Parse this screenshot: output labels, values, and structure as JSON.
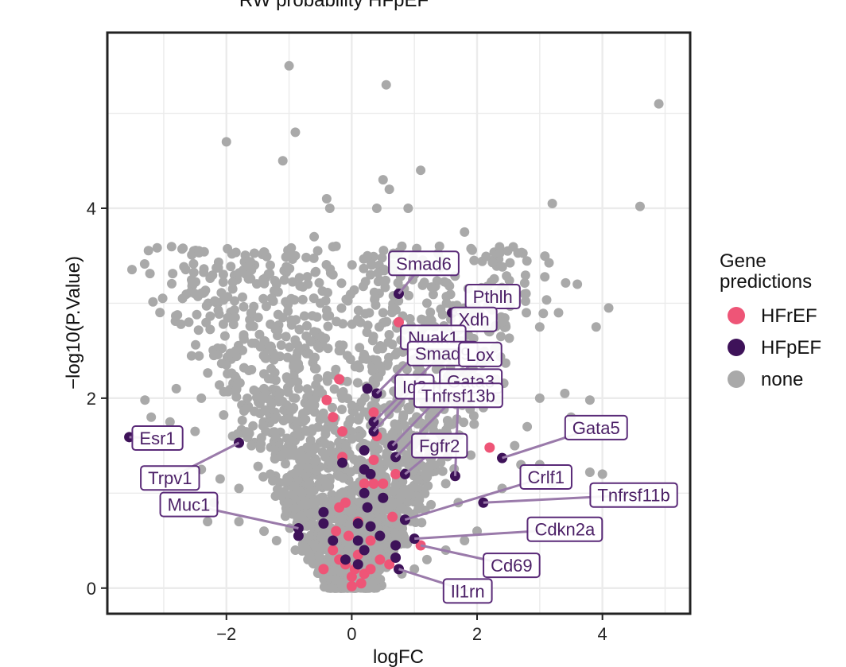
{
  "chart_data": {
    "type": "scatter",
    "title": "RW probability HFpEF",
    "xlabel": "logFC",
    "ylabel": "−log10(P.Value)",
    "xlim": [
      -3.9,
      5.4
    ],
    "ylim": [
      -0.27,
      5.85
    ],
    "x_ticks": [
      -2,
      0,
      2,
      4
    ],
    "x_tick_labels": [
      "−2",
      "0",
      "2",
      "4"
    ],
    "y_ticks": [
      0,
      2,
      4
    ],
    "y_tick_labels": [
      "0",
      "2",
      "4"
    ],
    "grid": true,
    "legend": {
      "title_line1": "Gene",
      "title_line2": "predictions",
      "placement": "right",
      "entries": [
        {
          "label": "HFrEF",
          "color": "#ee5577"
        },
        {
          "label": "HFpEF",
          "color": "#3e1259"
        },
        {
          "label": "none",
          "color": "#a9a9a9"
        }
      ]
    },
    "colors": {
      "HFrEF": "#ee5577",
      "HFpEF": "#3e1259",
      "none": "#a9a9a9",
      "label_line": "#9a7aaa",
      "label_text": "#4b1f66"
    },
    "series": [
      {
        "name": "none",
        "note": "representative subset of the several thousand background genes",
        "points": [
          [
            -1.0,
            5.5
          ],
          [
            0.55,
            5.3
          ],
          [
            4.9,
            5.1
          ],
          [
            -2.0,
            4.7
          ],
          [
            -0.9,
            4.8
          ],
          [
            -1.1,
            4.5
          ],
          [
            1.1,
            4.4
          ],
          [
            0.5,
            4.3
          ],
          [
            0.6,
            4.2
          ],
          [
            0.4,
            4.0
          ],
          [
            0.9,
            4.0
          ],
          [
            3.2,
            4.05
          ],
          [
            4.6,
            4.02
          ],
          [
            -0.4,
            4.1
          ],
          [
            -0.35,
            4.0
          ],
          [
            1.8,
            3.75
          ],
          [
            1.4,
            3.6
          ],
          [
            -0.6,
            3.7
          ],
          [
            -0.9,
            3.5
          ],
          [
            -1.3,
            3.4
          ],
          [
            -1.6,
            3.35
          ],
          [
            -1.2,
            3.2
          ],
          [
            -1.9,
            3.15
          ],
          [
            -2.7,
            3.05
          ],
          [
            -2.5,
            3.1
          ],
          [
            3.6,
            3.2
          ],
          [
            4.1,
            2.95
          ],
          [
            3.9,
            2.75
          ],
          [
            3.3,
            2.9
          ],
          [
            3.0,
            2.75
          ],
          [
            2.4,
            2.8
          ],
          [
            2.2,
            2.7
          ],
          [
            -2.6,
            2.8
          ],
          [
            -1.6,
            2.9
          ],
          [
            -1.1,
            2.85
          ],
          [
            -2.2,
            2.45
          ],
          [
            -2.0,
            2.35
          ],
          [
            -1.6,
            2.3
          ],
          [
            -2.8,
            2.1
          ],
          [
            -2.4,
            2.0
          ],
          [
            -3.3,
            1.98
          ],
          [
            -3.2,
            1.8
          ],
          [
            -2.9,
            1.75
          ],
          [
            -2.5,
            1.65
          ],
          [
            3.0,
            2.0
          ],
          [
            3.4,
            2.05
          ],
          [
            3.8,
            1.98
          ],
          [
            3.5,
            1.8
          ],
          [
            2.8,
            1.7
          ],
          [
            2.6,
            1.5
          ],
          [
            2.7,
            1.3
          ],
          [
            3.0,
            1.3
          ],
          [
            3.2,
            1.1
          ],
          [
            3.8,
            1.22
          ],
          [
            4.0,
            1.2
          ],
          [
            2.4,
            1.05
          ],
          [
            -2.4,
            1.25
          ],
          [
            -2.1,
            1.15
          ],
          [
            -1.8,
            1.05
          ],
          [
            -2.2,
            0.9
          ],
          [
            -2.3,
            0.7
          ],
          [
            -1.8,
            0.7
          ],
          [
            -1.4,
            0.6
          ],
          [
            -1.2,
            0.5
          ],
          [
            -0.9,
            0.4
          ],
          [
            -0.7,
            0.3
          ],
          [
            -0.5,
            0.25
          ],
          [
            2.0,
            0.6
          ],
          [
            1.8,
            0.5
          ],
          [
            1.5,
            0.4
          ],
          [
            1.2,
            0.3
          ],
          [
            1.0,
            0.2
          ],
          [
            0.8,
            0.15
          ],
          [
            -0.8,
            1.0
          ],
          [
            -1.0,
            1.4
          ],
          [
            -1.2,
            1.8
          ],
          [
            -1.4,
            2.1
          ],
          [
            -0.9,
            2.4
          ],
          [
            -0.6,
            2.7
          ],
          [
            -0.5,
            3.0
          ],
          [
            -0.3,
            3.3
          ],
          [
            -0.25,
            3.6
          ],
          [
            -0.2,
            2.5
          ],
          [
            -0.15,
            2.0
          ],
          [
            -0.1,
            1.5
          ],
          [
            0.2,
            1.2
          ],
          [
            0.3,
            1.8
          ],
          [
            0.4,
            2.4
          ],
          [
            0.5,
            2.9
          ],
          [
            0.3,
            3.3
          ],
          [
            0.25,
            3.5
          ],
          [
            0.7,
            2.2
          ],
          [
            0.9,
            1.9
          ],
          [
            1.1,
            1.6
          ],
          [
            1.3,
            1.3
          ],
          [
            1.5,
            1.1
          ],
          [
            1.7,
            0.9
          ],
          [
            -0.4,
            0.6
          ],
          [
            -0.3,
            0.9
          ],
          [
            0.2,
            0.5
          ],
          [
            0.4,
            0.7
          ],
          [
            0.6,
            0.9
          ],
          [
            -0.6,
            0.8
          ],
          [
            -1.6,
            1.5
          ],
          [
            -1.9,
            1.6
          ],
          [
            1.9,
            1.4
          ],
          [
            2.1,
            1.9
          ],
          [
            2.3,
            2.2
          ],
          [
            1.7,
            2.4
          ],
          [
            1.2,
            3.0
          ],
          [
            1.0,
            3.3
          ],
          [
            0.8,
            3.6
          ],
          [
            -0.7,
            3.2
          ],
          [
            -0.9,
            2.0
          ],
          [
            -1.3,
            1.2
          ],
          [
            -0.05,
            0.1
          ],
          [
            0.05,
            0.05
          ],
          [
            0.1,
            0.35
          ],
          [
            -0.2,
            0.3
          ],
          [
            0.15,
            0.7
          ],
          [
            -0.1,
            0.6
          ]
        ]
      },
      {
        "name": "HFrEF",
        "points": [
          [
            0.75,
            2.8
          ],
          [
            -0.2,
            2.2
          ],
          [
            -0.4,
            1.98
          ],
          [
            -0.3,
            1.8
          ],
          [
            -0.15,
            1.65
          ],
          [
            0.35,
            1.85
          ],
          [
            0.4,
            1.6
          ],
          [
            -0.15,
            1.38
          ],
          [
            0.35,
            1.35
          ],
          [
            2.2,
            1.48
          ],
          [
            0.7,
            1.2
          ],
          [
            0.5,
            1.1
          ],
          [
            0.35,
            1.1
          ],
          [
            0.2,
            1.1
          ],
          [
            -0.1,
            0.9
          ],
          [
            -0.2,
            0.85
          ],
          [
            0.65,
            0.75
          ],
          [
            0.1,
            0.7
          ],
          [
            -0.25,
            0.6
          ],
          [
            -0.05,
            0.55
          ],
          [
            0.3,
            0.5
          ],
          [
            1.1,
            0.45
          ],
          [
            -0.3,
            0.4
          ],
          [
            0.1,
            0.35
          ],
          [
            0.45,
            0.3
          ],
          [
            0.6,
            0.25
          ],
          [
            -0.45,
            0.2
          ],
          [
            0.05,
            0.2
          ],
          [
            0.2,
            0.15
          ],
          [
            0.0,
            0.12
          ],
          [
            -0.1,
            0.25
          ],
          [
            0.15,
            0.05
          ],
          [
            0.0,
            0.02
          ],
          [
            0.3,
            0.2
          ],
          [
            -0.2,
            0.3
          ]
        ]
      },
      {
        "name": "HFpEF",
        "points": [
          [
            0.75,
            3.1
          ],
          [
            1.6,
            2.9
          ],
          [
            -3.55,
            1.59
          ],
          [
            0.25,
            2.1
          ],
          [
            0.4,
            2.05
          ],
          [
            0.35,
            1.75
          ],
          [
            0.35,
            1.65
          ],
          [
            -1.8,
            1.53
          ],
          [
            0.65,
            1.5
          ],
          [
            0.7,
            1.38
          ],
          [
            0.2,
            1.45
          ],
          [
            2.4,
            1.37
          ],
          [
            -0.15,
            1.32
          ],
          [
            0.2,
            1.25
          ],
          [
            0.3,
            1.2
          ],
          [
            0.85,
            1.2
          ],
          [
            1.65,
            1.18
          ],
          [
            0.2,
            1.0
          ],
          [
            0.5,
            0.95
          ],
          [
            2.1,
            0.9
          ],
          [
            0.25,
            0.85
          ],
          [
            -0.45,
            0.8
          ],
          [
            0.85,
            0.72
          ],
          [
            -0.45,
            0.68
          ],
          [
            0.1,
            0.68
          ],
          [
            0.3,
            0.65
          ],
          [
            -0.85,
            0.63
          ],
          [
            -0.85,
            0.55
          ],
          [
            0.45,
            0.55
          ],
          [
            1.0,
            0.52
          ],
          [
            0.1,
            0.5
          ],
          [
            -0.3,
            0.5
          ],
          [
            0.7,
            0.45
          ],
          [
            0.2,
            0.4
          ],
          [
            -0.1,
            0.3
          ],
          [
            0.7,
            0.32
          ],
          [
            0.1,
            0.25
          ],
          [
            0.75,
            0.2
          ]
        ]
      }
    ],
    "labels": [
      {
        "gene": "Smad6",
        "x": 0.75,
        "y": 3.1,
        "lx": 1.15,
        "ly": 3.42
      },
      {
        "gene": "Pthlh",
        "x": 1.6,
        "y": 2.9,
        "lx": 2.25,
        "ly": 3.07
      },
      {
        "gene": "Xdh",
        "x": 1.6,
        "y": 2.9,
        "lx": 1.95,
        "ly": 2.83
      },
      {
        "gene": "Nuak1",
        "x": 0.4,
        "y": 2.05,
        "lx": 1.3,
        "ly": 2.64
      },
      {
        "gene": "Smad9",
        "x": 0.35,
        "y": 1.75,
        "lx": 1.45,
        "ly": 2.47
      },
      {
        "gene": "Lox",
        "x": 0.65,
        "y": 1.5,
        "lx": 2.05,
        "ly": 2.46
      },
      {
        "gene": "Gata3",
        "x": 0.7,
        "y": 1.38,
        "lx": 1.9,
        "ly": 2.18
      },
      {
        "gene": "Id2",
        "x": 0.35,
        "y": 1.65,
        "lx": 1.0,
        "ly": 2.12
      },
      {
        "gene": "Tnfrsf13b",
        "x": 1.65,
        "y": 1.18,
        "lx": 1.7,
        "ly": 2.03
      },
      {
        "gene": "Gata5",
        "x": 2.4,
        "y": 1.37,
        "lx": 3.9,
        "ly": 1.69
      },
      {
        "gene": "Esr1",
        "x": -3.55,
        "y": 1.59,
        "lx": -3.1,
        "ly": 1.58
      },
      {
        "gene": "Fgfr2",
        "x": 0.85,
        "y": 1.2,
        "lx": 1.4,
        "ly": 1.5
      },
      {
        "gene": "Trpv1",
        "x": -1.8,
        "y": 1.53,
        "lx": -2.9,
        "ly": 1.16
      },
      {
        "gene": "Crlf1",
        "x": 0.85,
        "y": 0.72,
        "lx": 3.1,
        "ly": 1.17
      },
      {
        "gene": "Tnfrsf11b",
        "x": 2.1,
        "y": 0.9,
        "lx": 4.5,
        "ly": 0.98
      },
      {
        "gene": "Muc1",
        "x": -0.85,
        "y": 0.63,
        "lx": -2.6,
        "ly": 0.88
      },
      {
        "gene": "Cdkn2a",
        "x": 1.0,
        "y": 0.52,
        "lx": 3.4,
        "ly": 0.62
      },
      {
        "gene": "Cd69",
        "x": 1.1,
        "y": 0.45,
        "lx": 2.55,
        "ly": 0.24
      },
      {
        "gene": "Il1rn",
        "x": 0.75,
        "y": 0.2,
        "lx": 1.85,
        "ly": -0.03
      }
    ]
  }
}
